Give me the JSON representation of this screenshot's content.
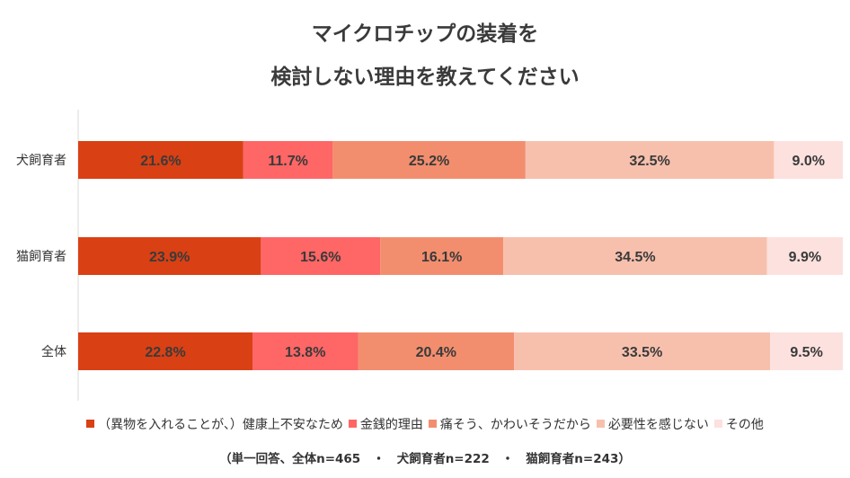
{
  "title_line1": "マイクロチップの装着を",
  "title_line2": "検討しない理由を教えてください",
  "note": "（単一回答、全体n=465　・　犬飼育者n=222　・　猫飼育者n=243）",
  "chart_data": {
    "type": "bar",
    "orientation": "horizontal",
    "stacked": "percent",
    "title": "マイクロチップの装着を 検討しない理由を教えてください",
    "categories": [
      "犬飼育者",
      "猫飼育者",
      "全体"
    ],
    "series": [
      {
        "name": "（異物を入れることが、）健康上不安なため",
        "color": "#D94014",
        "values": [
          21.6,
          23.9,
          22.8
        ],
        "labels": [
          "21.6%",
          "23.9%",
          "22.8%"
        ]
      },
      {
        "name": "金銭的理由",
        "color": "#FF6666",
        "values": [
          11.7,
          15.6,
          13.8
        ],
        "labels": [
          "11.7%",
          "15.6%",
          "13.8%"
        ]
      },
      {
        "name": "痛そう、かわいそうだから",
        "color": "#F28E6E",
        "values": [
          25.2,
          16.1,
          20.4
        ],
        "labels": [
          "25.2%",
          "16.1%",
          "20.4%"
        ]
      },
      {
        "name": "必要性を感じない",
        "color": "#F7C0AD",
        "values": [
          32.5,
          34.5,
          33.5
        ],
        "labels": [
          "32.5%",
          "34.5%",
          "33.5%"
        ]
      },
      {
        "name": "その他",
        "color": "#FCE1DE",
        "values": [
          9.0,
          9.9,
          9.5
        ],
        "labels": [
          "9.0%",
          "9.9%",
          "9.5%"
        ]
      }
    ],
    "xlim": [
      0,
      100
    ],
    "legend_position": "bottom",
    "grid": false
  }
}
